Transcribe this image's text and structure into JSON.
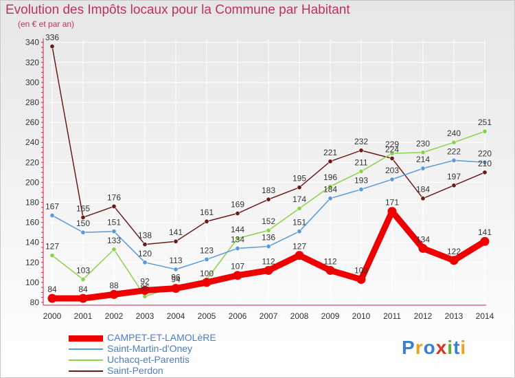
{
  "header": {
    "title": "Evolution des Impôts locaux pour la Commune par Habitant",
    "subtitle": "(en € et par an)"
  },
  "logo": {
    "text": "Proxiti",
    "letters": [
      "P",
      "r",
      "o",
      "x",
      "i",
      "t",
      "i"
    ],
    "colors": [
      "#3a7fd0",
      "#f0a020",
      "#3a7fd0",
      "#e03020",
      "#60b030",
      "#3a7fd0",
      "#f0a020"
    ]
  },
  "chart_data": {
    "type": "line",
    "title": "Evolution des Impôts locaux pour la Commune par Habitant",
    "ylabel": "(en € et par an)",
    "xlabel": "",
    "x": [
      "2000",
      "2001",
      "2002",
      "2003",
      "2004",
      "2005",
      "2006",
      "2007",
      "2008",
      "2009",
      "2010",
      "2011",
      "2012",
      "2013",
      "2014"
    ],
    "ylim": [
      80,
      340
    ],
    "yticks": [
      80,
      100,
      120,
      140,
      160,
      180,
      200,
      220,
      240,
      260,
      280,
      300,
      320,
      340
    ],
    "grid": true,
    "legend": "bottom-left",
    "series": [
      {
        "name": "Saint-Perdon",
        "color": "#6b1a1a",
        "values": [
          336,
          165,
          176,
          138,
          141,
          161,
          169,
          183,
          195,
          221,
          232,
          224,
          184,
          197,
          210
        ],
        "labels": [
          "336",
          "165",
          "176",
          "138",
          "141",
          "161",
          "169",
          "183",
          "195",
          "221",
          "232",
          "224",
          "184",
          "197",
          "210"
        ]
      },
      {
        "name": "Uchacq-et-Parentis",
        "color": "#8ad24a",
        "values": [
          127,
          103,
          133,
          86,
          96,
          103,
          144,
          152,
          174,
          196,
          211,
          229,
          230,
          240,
          251
        ],
        "labels": [
          "127",
          "103",
          "133",
          "86",
          "96",
          "",
          "144",
          "152",
          "174",
          "196",
          "211",
          "229",
          "230",
          "240",
          "251"
        ]
      },
      {
        "name": "Saint-Martin-d'Oney",
        "color": "#5a9ad6",
        "values": [
          167,
          150,
          151,
          120,
          113,
          123,
          134,
          136,
          151,
          184,
          193,
          203,
          214,
          222,
          220
        ],
        "labels": [
          "167",
          "150",
          "151",
          "120",
          "113",
          "123",
          "134",
          "136",
          "151",
          "184",
          "193",
          "203",
          "214",
          "222",
          "220"
        ]
      },
      {
        "name": "CAMPET-ET-LAMOLèRE",
        "color": "#ee0000",
        "values": [
          84,
          84,
          88,
          92,
          94,
          100,
          107,
          112,
          127,
          112,
          103,
          171,
          134,
          122,
          141
        ],
        "labels": [
          "84",
          "84",
          "88",
          "92",
          "94",
          "100",
          "107",
          "112",
          "127",
          "112",
          "103",
          "171",
          "134",
          "122",
          "141"
        ]
      }
    ],
    "legend_order": [
      "CAMPET-ET-LAMOLèRE",
      "Saint-Martin-d'Oney",
      "Uchacq-et-Parentis",
      "Saint-Perdon"
    ]
  }
}
